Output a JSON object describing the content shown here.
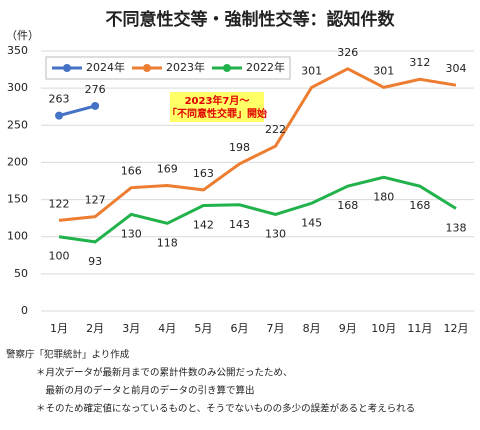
{
  "chart_data": {
    "type": "line",
    "title": "不同意性交等・強制性交等：認知件数",
    "y_label": "（件）",
    "categories": [
      "1月",
      "2月",
      "3月",
      "4月",
      "5月",
      "6月",
      "7月",
      "8月",
      "9月",
      "10月",
      "11月",
      "12月"
    ],
    "series": [
      {
        "name": "2024年",
        "color": "#4472c4",
        "marker": true,
        "values": [
          263,
          276,
          null,
          null,
          null,
          null,
          null,
          null,
          null,
          null,
          null,
          null
        ]
      },
      {
        "name": "2023年",
        "color": "#ed7d31",
        "marker": false,
        "values": [
          122,
          127,
          166,
          169,
          163,
          198,
          222,
          301,
          326,
          301,
          312,
          304
        ]
      },
      {
        "name": "2022年",
        "color": "#21b24b",
        "marker": false,
        "values": [
          100,
          93,
          130,
          118,
          142,
          143,
          130,
          145,
          168,
          180,
          168,
          138
        ]
      }
    ],
    "ylim": [
      0,
      350
    ],
    "yticks": [
      0,
      50,
      100,
      150,
      200,
      250,
      300,
      350
    ],
    "grid": true,
    "legend": "top-left",
    "annotation": [
      "2023年7月～",
      "「不同意性交罪」開始"
    ],
    "notes": [
      "警察庁「犯罪統計」より作成",
      "＊月次データが最新月までの累計件数のみ公開だったため、",
      "　最新の月のデータと前月のデータの引き算で算出",
      "＊そのため確定値になっているものと、そうでないものの多少の誤差があると考えられる"
    ]
  }
}
